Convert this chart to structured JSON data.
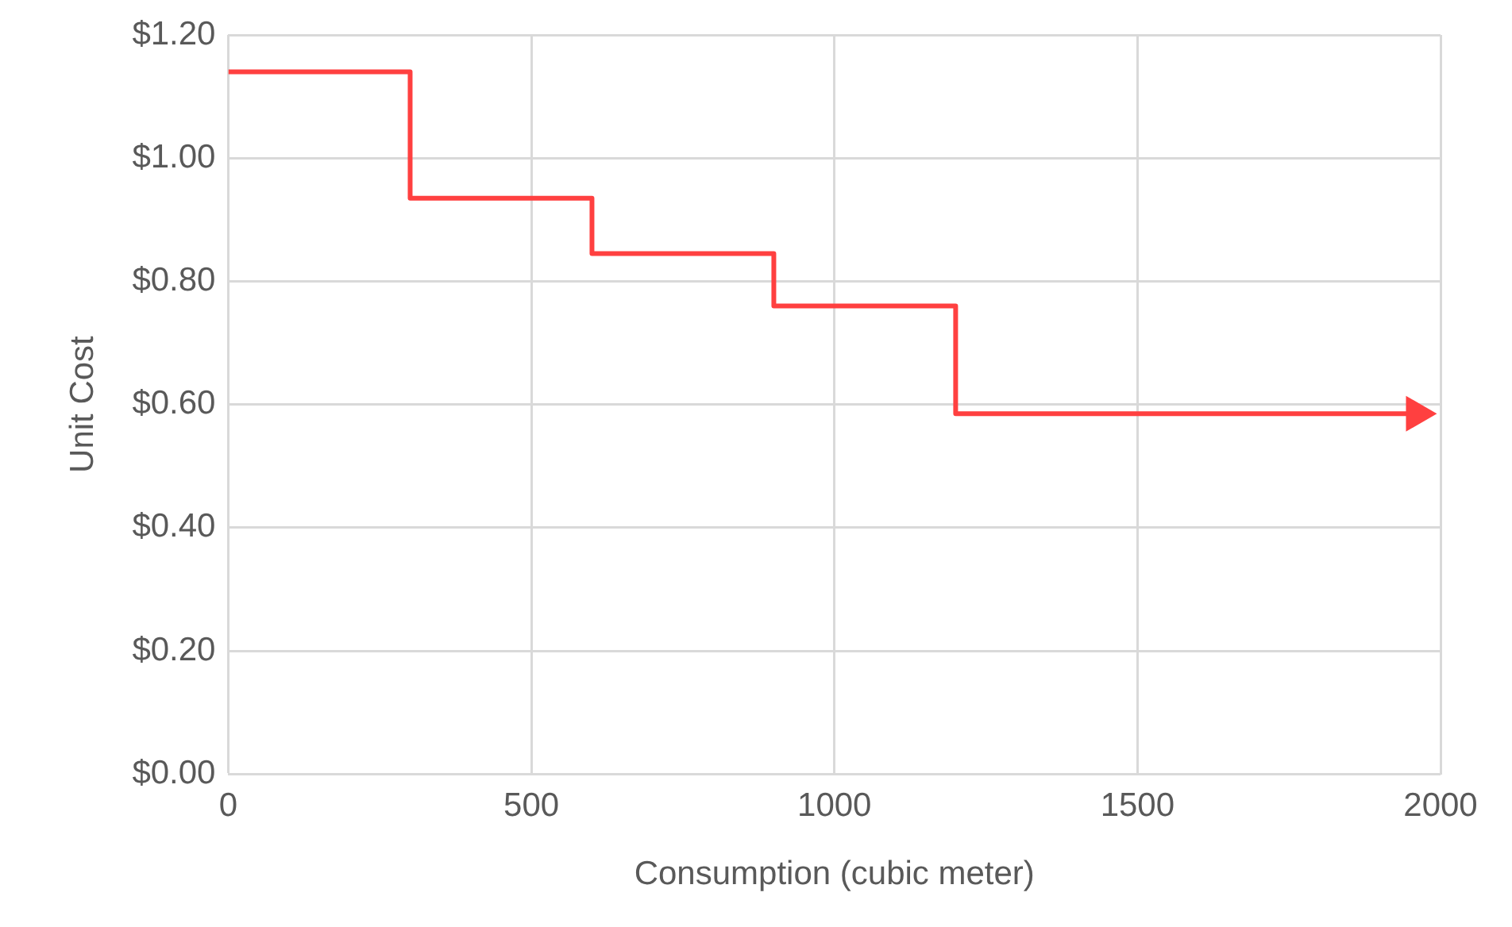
{
  "chart_data": {
    "type": "step",
    "xlabel": "Consumption (cubic meter)",
    "ylabel": "Unit Cost",
    "x": [
      0,
      300,
      600,
      900,
      1200,
      1960
    ],
    "series": [
      {
        "color": "#ff4040",
        "values": [
          1.14,
          0.935,
          0.845,
          0.76,
          0.585,
          0.585
        ]
      }
    ],
    "xlim": [
      0,
      2000
    ],
    "xticks": [
      0,
      500,
      1000,
      1500,
      2000
    ],
    "ylim": [
      0,
      1.2
    ],
    "yticks": [
      {
        "value": 0,
        "label": "$0.00"
      },
      {
        "value": 0.2,
        "label": "$0.20"
      },
      {
        "value": 0.4,
        "label": "$0.40"
      },
      {
        "value": 0.6,
        "label": "$0.60"
      },
      {
        "value": 0.8,
        "label": "$0.80"
      },
      {
        "value": 1,
        "label": "$1.00"
      },
      {
        "value": 1.2,
        "label": "$1.20"
      }
    ],
    "grid": true,
    "legend": false
  }
}
